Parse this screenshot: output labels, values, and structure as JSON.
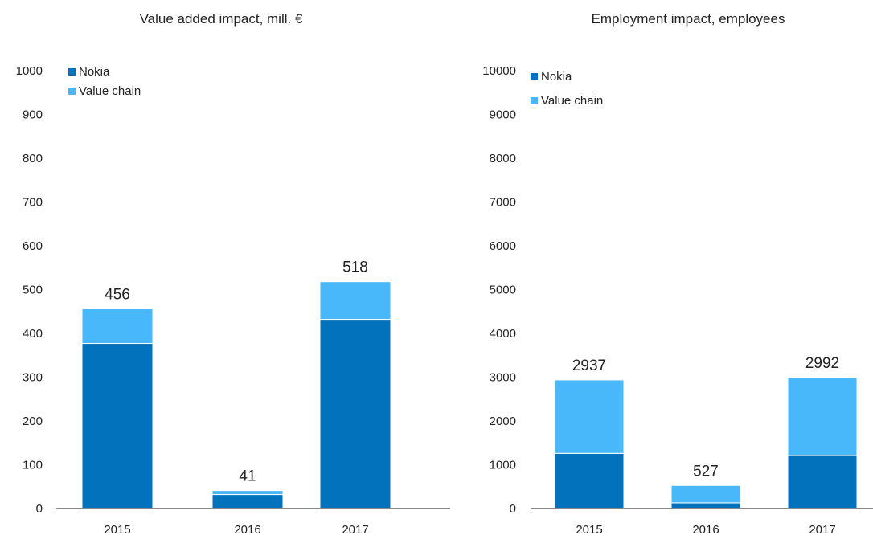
{
  "colors": {
    "nokia": "#0272BC",
    "value_chain": "#49B8FA",
    "axis": "#888888"
  },
  "chart_data": [
    {
      "type": "bar",
      "stacked": true,
      "title": "Value added impact, mill. €",
      "categories": [
        "2015",
        "2016",
        "2017"
      ],
      "series": [
        {
          "name": "Nokia",
          "values": [
            377,
            32,
            432
          ]
        },
        {
          "name": "Value chain",
          "values": [
            79,
            9,
            86
          ]
        }
      ],
      "totals": [
        "456",
        "41",
        "518"
      ],
      "ylim": [
        0,
        1000
      ],
      "yticks": [
        0,
        100,
        200,
        300,
        400,
        500,
        600,
        700,
        800,
        900,
        1000
      ],
      "legend_position": "top-left",
      "grid": false
    },
    {
      "type": "bar",
      "stacked": true,
      "title": "Employment impact, employees",
      "categories": [
        "2015",
        "2016",
        "2017"
      ],
      "series": [
        {
          "name": "Nokia",
          "values": [
            1260,
            130,
            1210
          ]
        },
        {
          "name": "Value chain",
          "values": [
            1677,
            397,
            1782
          ]
        }
      ],
      "totals": [
        "2937",
        "527",
        "2992"
      ],
      "ylim": [
        0,
        10000
      ],
      "yticks": [
        0,
        1000,
        2000,
        3000,
        4000,
        5000,
        6000,
        7000,
        8000,
        9000,
        10000
      ],
      "legend_position": "top-left",
      "grid": false
    }
  ]
}
